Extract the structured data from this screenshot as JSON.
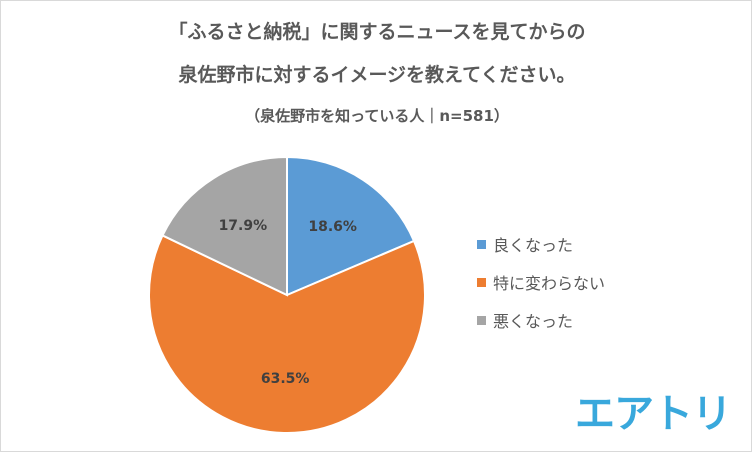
{
  "chart_data": {
    "type": "pie",
    "title_lines": [
      "「ふるさと納税」に関するニュースを見てからの",
      "泉佐野市に対するイメージを教えてください。",
      "（泉佐野市を知っている人｜n=581）"
    ],
    "slices": [
      {
        "label": "良くなった",
        "value": 18.6,
        "display": "18.6%",
        "color": "#5b9bd5"
      },
      {
        "label": "特に変わらない",
        "value": 63.5,
        "display": "63.5%",
        "color": "#ed7d31"
      },
      {
        "label": "悪くなった",
        "value": 17.9,
        "display": "17.9%",
        "color": "#a5a5a5"
      }
    ],
    "legend_position": "right"
  },
  "branding": {
    "logo_text": "エアトリ",
    "logo_color": "#39a8dc"
  }
}
